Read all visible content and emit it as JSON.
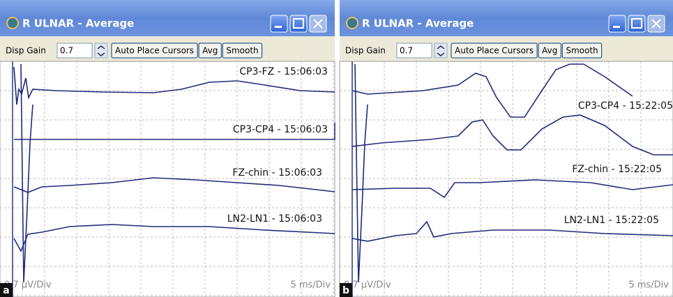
{
  "panels": [
    {
      "label": "a",
      "window": {
        "title": "R ULNAR - Average",
        "toolbar": {
          "gain_label": "Disp Gain",
          "gain_value": "0.7",
          "buttons": [
            "Auto Place Cursors",
            "Avg",
            "Smooth"
          ]
        },
        "traces": [
          "CP3-FZ - 15:06:03",
          "CP3-CP4 - 15:06:03",
          "FZ-chin - 15:06:03",
          "LN2-LN1 - 15:06:03"
        ],
        "scale_y": "0.7 µV/Div",
        "scale_x": "5 ms/Div"
      }
    },
    {
      "label": "b",
      "window": {
        "title": "R ULNAR - Average",
        "toolbar": {
          "gain_label": "Disp Gain",
          "gain_value": "0.7",
          "buttons": [
            "Auto Place Cursors",
            "Avg",
            "Smooth"
          ]
        },
        "traces": [
          "CP3-CP4 - 15:22:05",
          "FZ-chin - 15:22:05",
          "LN2-LN1 - 15:22:05"
        ],
        "scale_y": "0.7 µV/Div",
        "scale_x": "5 ms/Div"
      }
    }
  ]
}
